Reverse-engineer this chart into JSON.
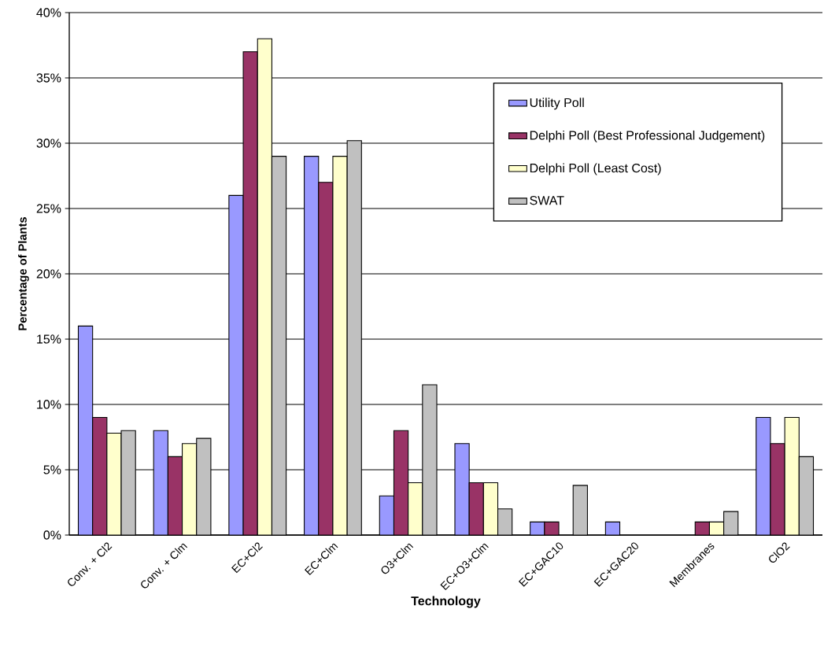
{
  "chart_data": {
    "type": "bar",
    "xlabel": "Technology",
    "ylabel": "Percentage of Plants",
    "categories": [
      "Conv. + Cl2",
      "Conv. + Clm",
      "EC+Cl2",
      "EC+Clm",
      "O3+Clm",
      "EC+O3+Clm",
      "EC+GAC10",
      "EC+GAC20",
      "Membranes",
      "ClO2"
    ],
    "series": [
      {
        "name": "Utility Poll",
        "color": "#9999ff",
        "values": [
          16,
          8,
          26,
          29,
          3,
          7,
          1,
          1,
          0,
          9
        ]
      },
      {
        "name": "Delphi Poll (Best Professional Judgement)",
        "color": "#993366",
        "values": [
          9,
          6,
          37,
          27,
          8,
          4,
          1,
          0,
          1,
          7
        ]
      },
      {
        "name": "Delphi Poll (Least Cost)",
        "color": "#ffffcc",
        "values": [
          7.8,
          7,
          38,
          29,
          4,
          4,
          0,
          0,
          1,
          9
        ]
      },
      {
        "name": "SWAT",
        "color": "#c0c0c0",
        "values": [
          8,
          7.4,
          29,
          30.2,
          11.5,
          2,
          3.8,
          0,
          1.8,
          6
        ]
      }
    ],
    "ylim": [
      0,
      40
    ],
    "yticks": [
      {
        "value": 0,
        "label": "0%"
      },
      {
        "value": 5,
        "label": "5%"
      },
      {
        "value": 10,
        "label": "10%"
      },
      {
        "value": 15,
        "label": "15%"
      },
      {
        "value": 20,
        "label": "20%"
      },
      {
        "value": 25,
        "label": "25%"
      },
      {
        "value": 30,
        "label": "30%"
      },
      {
        "value": 35,
        "label": "35%"
      },
      {
        "value": 40,
        "label": "40%"
      }
    ],
    "grid": "y",
    "legend": "top right"
  }
}
